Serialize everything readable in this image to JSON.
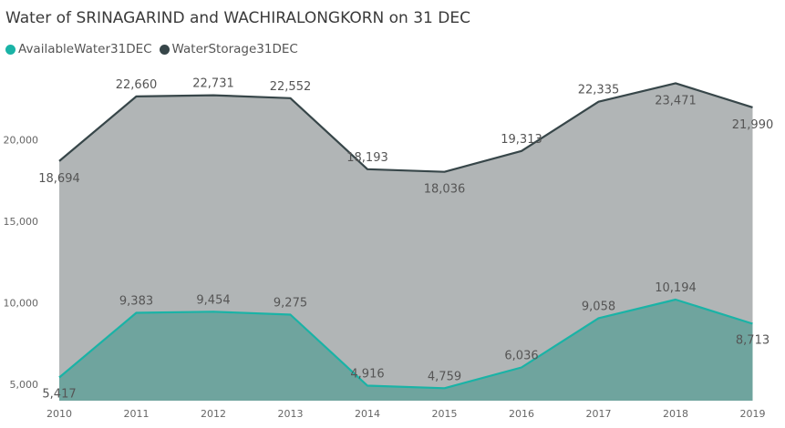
{
  "chart_data": {
    "type": "area",
    "title": "Water of SRINAGARIND and WACHIRALONGKORN on 31 DEC",
    "x": [
      "2010",
      "2011",
      "2012",
      "2013",
      "2014",
      "2015",
      "2016",
      "2017",
      "2018",
      "2019"
    ],
    "series": [
      {
        "name": "AvailableWater31DEC",
        "color": "#1ab3a6",
        "values": [
          5417,
          9383,
          9454,
          9275,
          4916,
          4759,
          6036,
          9058,
          10194,
          8713
        ],
        "labels": [
          "5,417",
          "9,383",
          "9,454",
          "9,275",
          "4,916",
          "4,759",
          "6,036",
          "9,058",
          "10,194",
          "8,713"
        ]
      },
      {
        "name": "WaterStorage31DEC",
        "color": "#374649",
        "values": [
          18694,
          22660,
          22731,
          22552,
          18193,
          18036,
          19313,
          22335,
          23471,
          21990
        ],
        "labels": [
          "18,694",
          "22,660",
          "22,731",
          "22,552",
          "18,193",
          "18,036",
          "19,313",
          "22,335",
          "23,471",
          "21,990"
        ]
      }
    ],
    "y_ticks": [
      5000,
      10000,
      15000,
      20000
    ],
    "y_tick_labels": [
      "5,000",
      "10,000",
      "15,000",
      "20,000"
    ],
    "grid": false,
    "legend_position": "top-left"
  }
}
